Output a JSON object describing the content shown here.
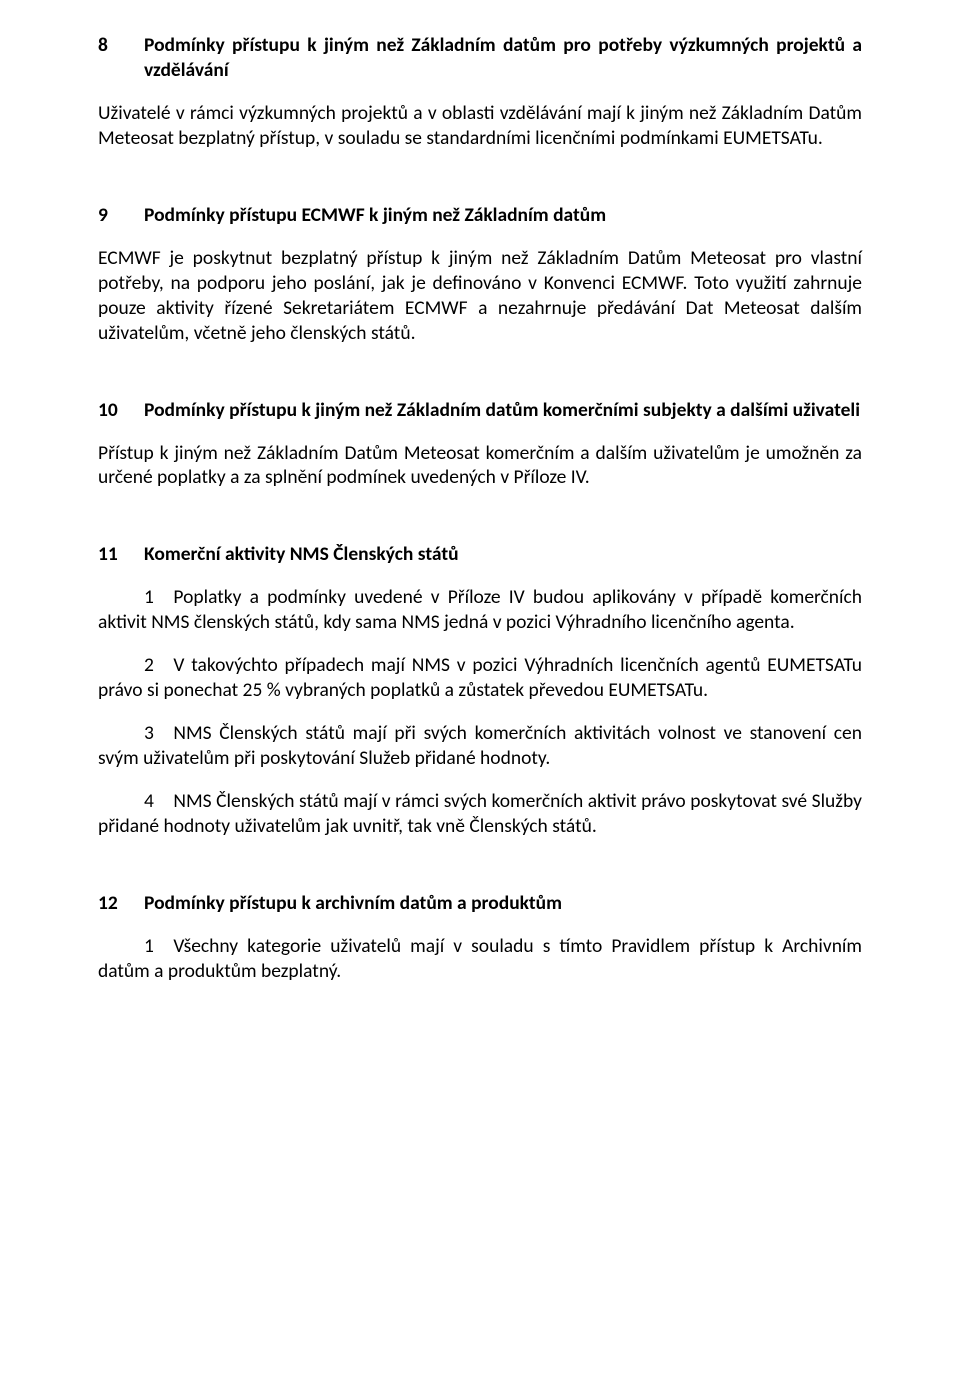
{
  "sections": [
    {
      "num": "8",
      "heading": "Podmínky přístupu k jiným než Základním datům pro potřeby výzkumných projektů a vzdělávání",
      "paragraphs": [
        "Uživatelé v rámci výzkumných projektů a v oblasti vzdělávání mají k jiným než Základním Datům Meteosat bezplatný přístup, v souladu se standardními licenčními podmínkami EUMETSATu."
      ]
    },
    {
      "num": "9",
      "heading": "Podmínky přístupu ECMWF k jiným než Základním datům",
      "paragraphs": [
        "ECMWF je poskytnut bezplatný přístup k jiným než Základním Datům Meteosat pro vlastní potřeby, na podporu jeho poslání, jak je definováno v Konvenci ECMWF. Toto využití zahrnuje pouze aktivity řízené Sekretariátem ECMWF a nezahrnuje předávání Dat Meteosat dalším uživatelům, včetně jeho členských států."
      ]
    },
    {
      "num": "10",
      "heading": "Podmínky přístupu k jiným než Základním datům komerčními subjekty a dalšími uživateli",
      "paragraphs": [
        "Přístup k jiným než Základním Datům Meteosat komerčním a dalším uživatelům je umožněn za určené poplatky a za splnění podmínek uvedených v Příloze IV."
      ]
    },
    {
      "num": "11",
      "heading": "Komerční aktivity NMS Členských států",
      "subparagraphs": [
        "1 Poplatky a podmínky uvedené v Příloze IV budou aplikovány v případě komerčních aktivit NMS členských států, kdy sama NMS jedná v pozici Výhradního licenčního agenta.",
        "2 V takovýchto případech mají NMS v pozici Výhradních licenčních agentů EUMETSATu právo si ponechat 25 % vybraných poplatků a zůstatek převedou EUMETSATu.",
        "3 NMS Členských států mají při svých komerčních aktivitách volnost ve stanovení cen svým uživatelům při poskytování Služeb přidané hodnoty.",
        "4 NMS Členských států mají v rámci svých komerčních aktivit právo poskytovat své Služby přidané hodnoty uživatelům jak uvnitř, tak vně Členských států."
      ]
    },
    {
      "num": "12",
      "heading": "Podmínky přístupu k archivním datům a produktům",
      "subparagraphs": [
        "1 Všechny kategorie uživatelů mají v souladu s tímto Pravidlem přístup k Archivním datům a produktům bezplatný."
      ]
    }
  ]
}
